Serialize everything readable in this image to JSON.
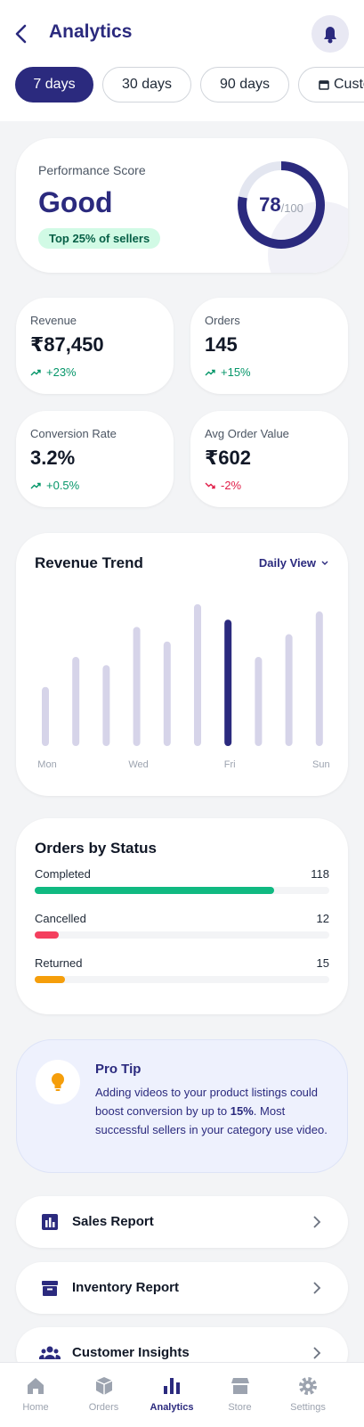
{
  "header": {
    "title": "Analytics"
  },
  "filters": [
    "7 days",
    "30 days",
    "90 days",
    "Custom"
  ],
  "performance": {
    "label": "Performance Score",
    "rating": "Good",
    "badge": "Top 25% of sellers",
    "score": 78,
    "out_of": "/100"
  },
  "metrics": [
    {
      "label": "Revenue",
      "value": "₹87,450",
      "change": "+23%",
      "direction": "up"
    },
    {
      "label": "Orders",
      "value": "145",
      "change": "+15%",
      "direction": "up"
    },
    {
      "label": "Conversion Rate",
      "value": "3.2%",
      "change": "+0.5%",
      "direction": "up"
    },
    {
      "label": "Avg Order Value",
      "value": "₹602",
      "change": "-2%",
      "direction": "down"
    }
  ],
  "chart_data": {
    "type": "bar",
    "title": "Revenue Trend",
    "view": "Daily View",
    "categories": [
      "Mon",
      null,
      null,
      "Wed",
      null,
      null,
      "Fri",
      null,
      null,
      "Sun"
    ],
    "values": [
      65,
      98,
      89,
      131,
      115,
      156,
      139,
      98,
      123,
      148
    ],
    "color": "#d6d4e9",
    "highlight_color": "#2b2a7e",
    "highlight_index": 6
  },
  "orders_status": {
    "title": "Orders by Status",
    "items": [
      {
        "label": "Completed",
        "count": 118,
        "color": "#10b981"
      },
      {
        "label": "Cancelled",
        "count": 12,
        "color": "#f43f5e"
      },
      {
        "label": "Returned",
        "count": 15,
        "color": "#f59e0b"
      }
    ]
  },
  "tip": {
    "title": "Pro Tip",
    "text_before": "Adding videos to your product listings could boost conversion by up to ",
    "text_bold": "15%",
    "text_after": ". Most successful sellers in your category use video."
  },
  "reports": [
    "Sales Report",
    "Inventory Report",
    "Customer Insights"
  ],
  "nav": [
    {
      "label": "Home"
    },
    {
      "label": "Orders"
    },
    {
      "label": "Analytics",
      "active": true
    },
    {
      "label": "Store"
    },
    {
      "label": "Settings"
    }
  ]
}
